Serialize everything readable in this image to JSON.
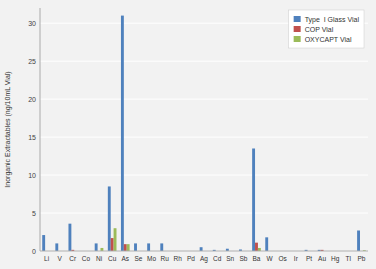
{
  "chart_data": {
    "type": "bar",
    "y_label": "Inorganic Extractables (ng/10mL Vial)",
    "categories": [
      "Li",
      "V",
      "Cr",
      "Co",
      "Ni",
      "Cu",
      "As",
      "Se",
      "Mo",
      "Ru",
      "Rh",
      "Pd",
      "Ag",
      "Cd",
      "Sn",
      "Sb",
      "Ba",
      "W",
      "Os",
      "Ir",
      "Pt",
      "Au",
      "Hg",
      "Tl",
      "Pb"
    ],
    "series": [
      {
        "name": "Type  I Glass Vial",
        "color": "#4F81BD",
        "values": [
          2.1,
          1.0,
          3.6,
          0.0,
          1.0,
          8.5,
          31.0,
          1.0,
          1.0,
          1.0,
          0.0,
          0.0,
          0.5,
          0.15,
          0.3,
          0.2,
          13.5,
          1.8,
          0.0,
          0.0,
          0.15,
          0.15,
          0.0,
          0.0,
          2.7
        ]
      },
      {
        "name": "COP Vial",
        "color": "#C0504D",
        "values": [
          0.0,
          0.0,
          0.15,
          0.0,
          0.0,
          1.7,
          0.9,
          0.0,
          0.0,
          0.0,
          0.0,
          0.0,
          0.0,
          0.0,
          0.0,
          0.0,
          1.1,
          0.0,
          0.0,
          0.0,
          0.0,
          0.15,
          0.0,
          0.0,
          0.0
        ]
      },
      {
        "name": "OXYCAPT Vial",
        "color": "#9BBB59",
        "values": [
          0.0,
          0.0,
          0.0,
          0.0,
          0.4,
          3.0,
          0.9,
          0.0,
          0.0,
          0.0,
          0.0,
          0.0,
          0.0,
          0.0,
          0.0,
          0.0,
          0.4,
          0.0,
          0.0,
          0.0,
          0.0,
          0.0,
          0.0,
          0.0,
          0.1
        ]
      }
    ],
    "ylim": [
      0,
      32
    ],
    "yticks": [
      0,
      5,
      10,
      15,
      20,
      25,
      30
    ],
    "grid": true,
    "legend": "upper right"
  }
}
